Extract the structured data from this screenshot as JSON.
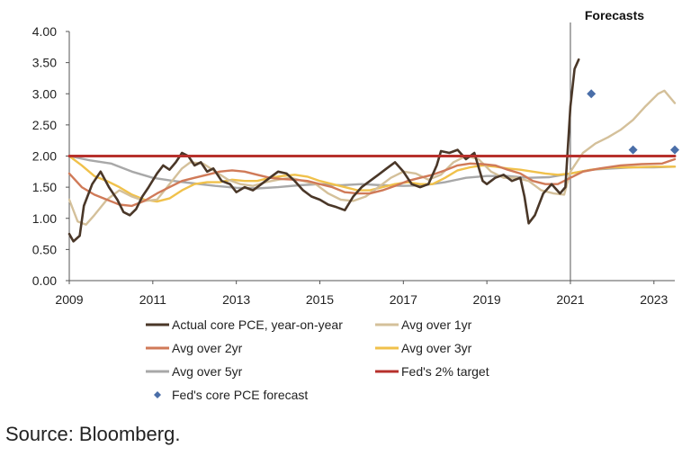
{
  "chart_data": {
    "type": "line",
    "title": "",
    "xlabel": "",
    "ylabel": "",
    "xlim": [
      2009,
      2023.5
    ],
    "ylim": [
      0,
      4
    ],
    "x_ticks": [
      2009,
      2011,
      2013,
      2015,
      2017,
      2019,
      2021,
      2023
    ],
    "y_ticks": [
      0,
      0.5,
      1,
      1.5,
      2,
      2.5,
      3,
      3.5,
      4
    ],
    "y_tick_labels": [
      "0.00",
      "0.50",
      "1.00",
      "1.50",
      "2.00",
      "2.50",
      "3.00",
      "3.50",
      "4.00"
    ],
    "grid": false,
    "legend_position": "bottom",
    "annotation": {
      "text": "Forecasts",
      "x": 2021
    },
    "series": [
      {
        "name": "Actual core PCE, year-on-year",
        "color": "#4a3728",
        "style": "line",
        "points": [
          [
            2009,
            0.75
          ],
          [
            2009.1,
            0.63
          ],
          [
            2009.25,
            0.72
          ],
          [
            2009.35,
            1.2
          ],
          [
            2009.55,
            1.55
          ],
          [
            2009.75,
            1.75
          ],
          [
            2009.95,
            1.5
          ],
          [
            2010.15,
            1.3
          ],
          [
            2010.3,
            1.1
          ],
          [
            2010.45,
            1.05
          ],
          [
            2010.6,
            1.15
          ],
          [
            2010.75,
            1.35
          ],
          [
            2010.9,
            1.5
          ],
          [
            2011.1,
            1.72
          ],
          [
            2011.25,
            1.85
          ],
          [
            2011.4,
            1.78
          ],
          [
            2011.55,
            1.9
          ],
          [
            2011.7,
            2.05
          ],
          [
            2011.85,
            2.0
          ],
          [
            2012.0,
            1.85
          ],
          [
            2012.15,
            1.9
          ],
          [
            2012.3,
            1.75
          ],
          [
            2012.45,
            1.8
          ],
          [
            2012.65,
            1.6
          ],
          [
            2012.85,
            1.55
          ],
          [
            2013.0,
            1.42
          ],
          [
            2013.2,
            1.5
          ],
          [
            2013.4,
            1.45
          ],
          [
            2013.6,
            1.55
          ],
          [
            2013.8,
            1.65
          ],
          [
            2014.0,
            1.75
          ],
          [
            2014.2,
            1.72
          ],
          [
            2014.4,
            1.6
          ],
          [
            2014.6,
            1.45
          ],
          [
            2014.8,
            1.35
          ],
          [
            2015.0,
            1.3
          ],
          [
            2015.2,
            1.22
          ],
          [
            2015.4,
            1.18
          ],
          [
            2015.6,
            1.13
          ],
          [
            2015.8,
            1.35
          ],
          [
            2016.0,
            1.5
          ],
          [
            2016.2,
            1.6
          ],
          [
            2016.4,
            1.7
          ],
          [
            2016.6,
            1.8
          ],
          [
            2016.8,
            1.9
          ],
          [
            2017.0,
            1.75
          ],
          [
            2017.2,
            1.55
          ],
          [
            2017.4,
            1.5
          ],
          [
            2017.6,
            1.55
          ],
          [
            2017.8,
            1.85
          ],
          [
            2017.9,
            2.08
          ],
          [
            2018.1,
            2.05
          ],
          [
            2018.3,
            2.1
          ],
          [
            2018.5,
            1.95
          ],
          [
            2018.7,
            2.05
          ],
          [
            2018.9,
            1.6
          ],
          [
            2019.0,
            1.55
          ],
          [
            2019.2,
            1.65
          ],
          [
            2019.4,
            1.7
          ],
          [
            2019.6,
            1.6
          ],
          [
            2019.8,
            1.65
          ],
          [
            2019.9,
            1.35
          ],
          [
            2020.0,
            0.92
          ],
          [
            2020.15,
            1.05
          ],
          [
            2020.35,
            1.4
          ],
          [
            2020.55,
            1.55
          ],
          [
            2020.75,
            1.4
          ],
          [
            2020.88,
            1.5
          ],
          [
            2021.0,
            2.8
          ],
          [
            2021.1,
            3.4
          ],
          [
            2021.2,
            3.55
          ]
        ]
      },
      {
        "name": "Avg over 1yr",
        "color": "#d4c09a",
        "style": "line",
        "points": [
          [
            2009,
            1.3
          ],
          [
            2009.2,
            0.95
          ],
          [
            2009.4,
            0.9
          ],
          [
            2009.6,
            1.05
          ],
          [
            2009.9,
            1.3
          ],
          [
            2010.2,
            1.45
          ],
          [
            2010.5,
            1.35
          ],
          [
            2010.8,
            1.28
          ],
          [
            2011.1,
            1.3
          ],
          [
            2011.4,
            1.55
          ],
          [
            2011.7,
            1.8
          ],
          [
            2011.9,
            1.9
          ],
          [
            2012.2,
            1.88
          ],
          [
            2012.5,
            1.75
          ],
          [
            2012.8,
            1.62
          ],
          [
            2013.1,
            1.55
          ],
          [
            2013.4,
            1.52
          ],
          [
            2013.7,
            1.58
          ],
          [
            2014.0,
            1.62
          ],
          [
            2014.3,
            1.65
          ],
          [
            2014.6,
            1.6
          ],
          [
            2014.9,
            1.55
          ],
          [
            2015.2,
            1.4
          ],
          [
            2015.5,
            1.3
          ],
          [
            2015.8,
            1.28
          ],
          [
            2016.1,
            1.35
          ],
          [
            2016.4,
            1.5
          ],
          [
            2016.7,
            1.65
          ],
          [
            2017.0,
            1.75
          ],
          [
            2017.3,
            1.72
          ],
          [
            2017.6,
            1.62
          ],
          [
            2017.9,
            1.7
          ],
          [
            2018.2,
            1.9
          ],
          [
            2018.5,
            2.0
          ],
          [
            2018.8,
            1.95
          ],
          [
            2019.1,
            1.75
          ],
          [
            2019.4,
            1.65
          ],
          [
            2019.7,
            1.65
          ],
          [
            2020.0,
            1.6
          ],
          [
            2020.3,
            1.45
          ],
          [
            2020.6,
            1.4
          ],
          [
            2020.85,
            1.38
          ],
          [
            2021.0,
            1.75
          ],
          [
            2021.3,
            2.05
          ],
          [
            2021.6,
            2.2
          ],
          [
            2021.9,
            2.3
          ],
          [
            2022.2,
            2.42
          ],
          [
            2022.5,
            2.58
          ],
          [
            2022.8,
            2.8
          ],
          [
            2023.1,
            3.0
          ],
          [
            2023.25,
            3.05
          ],
          [
            2023.5,
            2.85
          ]
        ]
      },
      {
        "name": "Avg over 2yr",
        "color": "#d07a58",
        "style": "line",
        "points": [
          [
            2009,
            1.72
          ],
          [
            2009.3,
            1.5
          ],
          [
            2009.6,
            1.38
          ],
          [
            2009.9,
            1.3
          ],
          [
            2010.2,
            1.22
          ],
          [
            2010.5,
            1.2
          ],
          [
            2010.8,
            1.28
          ],
          [
            2011.1,
            1.4
          ],
          [
            2011.4,
            1.5
          ],
          [
            2011.7,
            1.6
          ],
          [
            2012.0,
            1.65
          ],
          [
            2012.3,
            1.7
          ],
          [
            2012.6,
            1.75
          ],
          [
            2012.9,
            1.77
          ],
          [
            2013.2,
            1.75
          ],
          [
            2013.5,
            1.7
          ],
          [
            2013.8,
            1.65
          ],
          [
            2014.1,
            1.63
          ],
          [
            2014.4,
            1.62
          ],
          [
            2014.7,
            1.6
          ],
          [
            2015.0,
            1.55
          ],
          [
            2015.3,
            1.5
          ],
          [
            2015.6,
            1.42
          ],
          [
            2015.9,
            1.4
          ],
          [
            2016.2,
            1.4
          ],
          [
            2016.5,
            1.45
          ],
          [
            2016.8,
            1.52
          ],
          [
            2017.1,
            1.6
          ],
          [
            2017.4,
            1.65
          ],
          [
            2017.7,
            1.7
          ],
          [
            2018.0,
            1.77
          ],
          [
            2018.3,
            1.85
          ],
          [
            2018.6,
            1.88
          ],
          [
            2018.9,
            1.87
          ],
          [
            2019.2,
            1.85
          ],
          [
            2019.5,
            1.78
          ],
          [
            2019.8,
            1.72
          ],
          [
            2020.1,
            1.6
          ],
          [
            2020.4,
            1.55
          ],
          [
            2020.7,
            1.55
          ],
          [
            2021.0,
            1.65
          ],
          [
            2021.3,
            1.75
          ],
          [
            2021.7,
            1.8
          ],
          [
            2022.2,
            1.85
          ],
          [
            2022.7,
            1.87
          ],
          [
            2023.2,
            1.88
          ],
          [
            2023.5,
            1.95
          ]
        ]
      },
      {
        "name": "Avg over 3yr",
        "color": "#f0c14b",
        "style": "line",
        "points": [
          [
            2009,
            2.0
          ],
          [
            2009.3,
            1.85
          ],
          [
            2009.6,
            1.68
          ],
          [
            2009.9,
            1.6
          ],
          [
            2010.2,
            1.5
          ],
          [
            2010.5,
            1.38
          ],
          [
            2010.8,
            1.3
          ],
          [
            2011.1,
            1.27
          ],
          [
            2011.4,
            1.32
          ],
          [
            2011.7,
            1.45
          ],
          [
            2012.0,
            1.55
          ],
          [
            2012.3,
            1.58
          ],
          [
            2012.6,
            1.58
          ],
          [
            2012.9,
            1.62
          ],
          [
            2013.2,
            1.6
          ],
          [
            2013.5,
            1.6
          ],
          [
            2013.8,
            1.65
          ],
          [
            2014.1,
            1.68
          ],
          [
            2014.4,
            1.7
          ],
          [
            2014.7,
            1.67
          ],
          [
            2015.0,
            1.6
          ],
          [
            2015.3,
            1.55
          ],
          [
            2015.6,
            1.5
          ],
          [
            2015.9,
            1.45
          ],
          [
            2016.2,
            1.45
          ],
          [
            2016.5,
            1.5
          ],
          [
            2016.8,
            1.55
          ],
          [
            2017.1,
            1.58
          ],
          [
            2017.4,
            1.55
          ],
          [
            2017.7,
            1.55
          ],
          [
            2018.0,
            1.65
          ],
          [
            2018.3,
            1.77
          ],
          [
            2018.6,
            1.82
          ],
          [
            2018.9,
            1.85
          ],
          [
            2019.2,
            1.83
          ],
          [
            2019.5,
            1.8
          ],
          [
            2019.8,
            1.78
          ],
          [
            2020.1,
            1.75
          ],
          [
            2020.4,
            1.72
          ],
          [
            2020.7,
            1.7
          ],
          [
            2021.0,
            1.72
          ],
          [
            2021.5,
            1.78
          ],
          [
            2022.0,
            1.82
          ],
          [
            2022.5,
            1.82
          ],
          [
            2023.0,
            1.83
          ],
          [
            2023.5,
            1.83
          ]
        ]
      },
      {
        "name": "Avg over 5yr",
        "color": "#a8a8a8",
        "style": "line",
        "points": [
          [
            2009,
            2.0
          ],
          [
            2009.5,
            1.93
          ],
          [
            2010.0,
            1.88
          ],
          [
            2010.5,
            1.75
          ],
          [
            2011.0,
            1.65
          ],
          [
            2011.5,
            1.6
          ],
          [
            2012.0,
            1.56
          ],
          [
            2012.5,
            1.52
          ],
          [
            2013.0,
            1.49
          ],
          [
            2013.5,
            1.48
          ],
          [
            2014.0,
            1.5
          ],
          [
            2014.5,
            1.53
          ],
          [
            2015.0,
            1.55
          ],
          [
            2015.5,
            1.53
          ],
          [
            2016.0,
            1.55
          ],
          [
            2016.5,
            1.53
          ],
          [
            2017.0,
            1.52
          ],
          [
            2017.5,
            1.53
          ],
          [
            2018.0,
            1.58
          ],
          [
            2018.5,
            1.65
          ],
          [
            2019.0,
            1.68
          ],
          [
            2019.5,
            1.68
          ],
          [
            2020.0,
            1.65
          ],
          [
            2020.5,
            1.66
          ],
          [
            2021.0,
            1.72
          ],
          [
            2021.5,
            1.78
          ],
          [
            2022.0,
            1.8
          ],
          [
            2022.5,
            1.82
          ],
          [
            2023.0,
            1.82
          ],
          [
            2023.5,
            1.83
          ]
        ]
      },
      {
        "name": "Fed's 2% target",
        "color": "#b7312c",
        "style": "line",
        "points": [
          [
            2009,
            2.0
          ],
          [
            2023.5,
            2.0
          ]
        ]
      },
      {
        "name": "Fed's core PCE forecast",
        "color": "#4a6ea8",
        "style": "marker",
        "points": [
          [
            2021.5,
            3.0
          ],
          [
            2022.5,
            2.1
          ],
          [
            2023.5,
            2.1
          ]
        ]
      }
    ]
  },
  "source": "Source: Bloomberg."
}
